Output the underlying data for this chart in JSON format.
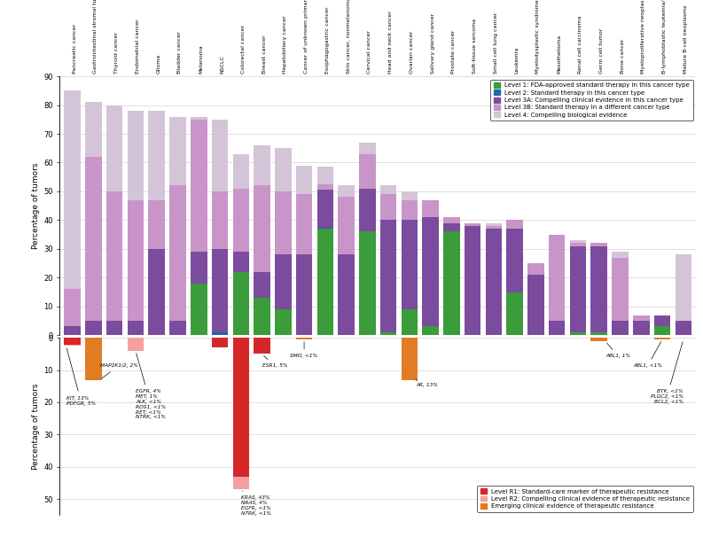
{
  "tumor_types": [
    "Pancreatic cancer",
    "Gastrointestinal stromal tumor",
    "Thyroid cancer",
    "Endometrial cancer",
    "Glioma",
    "Bladder cancer",
    "Melanoma",
    "NSCLC",
    "Colorectal cancer",
    "Breast cancer",
    "Hepatobiliary cancer",
    "Cancer of unknown primary",
    "Esophagogastric cancer",
    "Skin cancer, nonmelanoma",
    "Cervical cancer",
    "Head and neck cancer",
    "Ovarian cancer",
    "Salivary gland cancer",
    "Prostate cancer",
    "Soft-tissue sarcoma",
    "Small cell lung cancer",
    "Leukemia",
    "Myelodysplastic syndromes",
    "Mesothelioma",
    "Renal cell carcinoma",
    "Germ cell tumor",
    "Bone cancer",
    "Myeloproliferative neoplasms",
    "B-lymphoblastic leukemia/lymphoma",
    "Mature B-cell neoplasms"
  ],
  "sensitizing": {
    "level1": [
      0,
      0,
      0,
      0,
      0,
      0,
      18,
      0,
      22,
      13,
      9,
      0,
      37,
      0,
      36,
      1,
      9,
      3,
      36,
      0,
      0,
      15,
      0,
      0,
      1,
      1,
      0,
      0,
      3,
      0
    ],
    "level2": [
      0,
      0,
      0,
      0,
      0,
      0,
      0,
      1,
      0,
      0,
      0,
      0,
      0.5,
      0,
      0,
      0,
      0,
      0,
      0,
      0,
      0,
      0,
      0,
      0,
      0,
      0,
      0,
      0,
      0,
      0
    ],
    "level3a": [
      3,
      5,
      5,
      5,
      30,
      5,
      11,
      29,
      7,
      9,
      19,
      28,
      13,
      28,
      15,
      39,
      31,
      38,
      3,
      38,
      37,
      22,
      21,
      5,
      30,
      30,
      5,
      5,
      4,
      5
    ],
    "level3b": [
      13,
      57,
      45,
      42,
      17,
      47,
      46,
      20,
      22,
      30,
      22,
      21,
      2,
      20,
      12,
      9,
      7,
      6,
      2,
      1,
      1,
      3,
      4,
      30,
      1,
      1,
      22,
      2,
      0,
      0
    ],
    "level4": [
      69,
      19,
      30,
      31,
      31,
      24,
      1,
      25,
      12,
      14,
      15,
      10,
      6,
      4,
      4,
      3,
      3,
      0,
      0,
      0,
      1,
      0,
      0,
      0,
      1,
      0,
      2,
      0,
      0,
      23
    ]
  },
  "resistance": {
    "r1": [
      2,
      0,
      0,
      0,
      0,
      0,
      0,
      3,
      43,
      5,
      0,
      0,
      0,
      0,
      0,
      0,
      0,
      0,
      0,
      0,
      0,
      0,
      0,
      0,
      0,
      0,
      0,
      0,
      0,
      0
    ],
    "r2": [
      0.5,
      0,
      0,
      4,
      0,
      0,
      0,
      0,
      4,
      0,
      0,
      0,
      0,
      0,
      0,
      0,
      0,
      0,
      0,
      0,
      0,
      0,
      0,
      0,
      0,
      0,
      0,
      0,
      0,
      0
    ],
    "r_emerging": [
      0,
      13,
      0,
      0,
      0,
      0,
      0,
      0,
      0,
      0,
      0,
      0.5,
      0,
      0,
      0,
      0,
      13,
      0,
      0,
      0,
      0,
      0,
      0,
      0,
      0,
      1,
      0,
      0,
      0.5,
      0
    ]
  },
  "colors": {
    "level1": "#3a9c3a",
    "level2": "#2166ac",
    "level3a": "#7b4b9e",
    "level3b": "#c994c7",
    "level4": "#d4c4d8",
    "r1": "#d62728",
    "r2": "#f4a0a0",
    "r_emerging": "#e07c24"
  },
  "legend_top": [
    {
      "label": "Level 1: FDA-approved standard therapy in this cancer type",
      "color": "#3a9c3a"
    },
    {
      "label": "Level 2: Standard therapy in this cancer type",
      "color": "#2166ac"
    },
    {
      "label": "Level 3A: Compelling clinical evidence in this cancer type",
      "color": "#7b4b9e"
    },
    {
      "label": "Level 3B: Standard therapy in a different cancer type",
      "color": "#c994c7"
    },
    {
      "label": "Level 4: Compelling biological evidence",
      "color": "#d4c4d8"
    }
  ],
  "legend_bottom": [
    {
      "label": "Level R1: Standard-care marker of therapeutic resistance",
      "color": "#d62728"
    },
    {
      "label": "Level R2: Compelling clinical evidence of therapeutic resistance",
      "color": "#f4a0a0"
    },
    {
      "label": "Emerging clinical evidence of therapeutic resistance",
      "color": "#e07c24"
    }
  ]
}
